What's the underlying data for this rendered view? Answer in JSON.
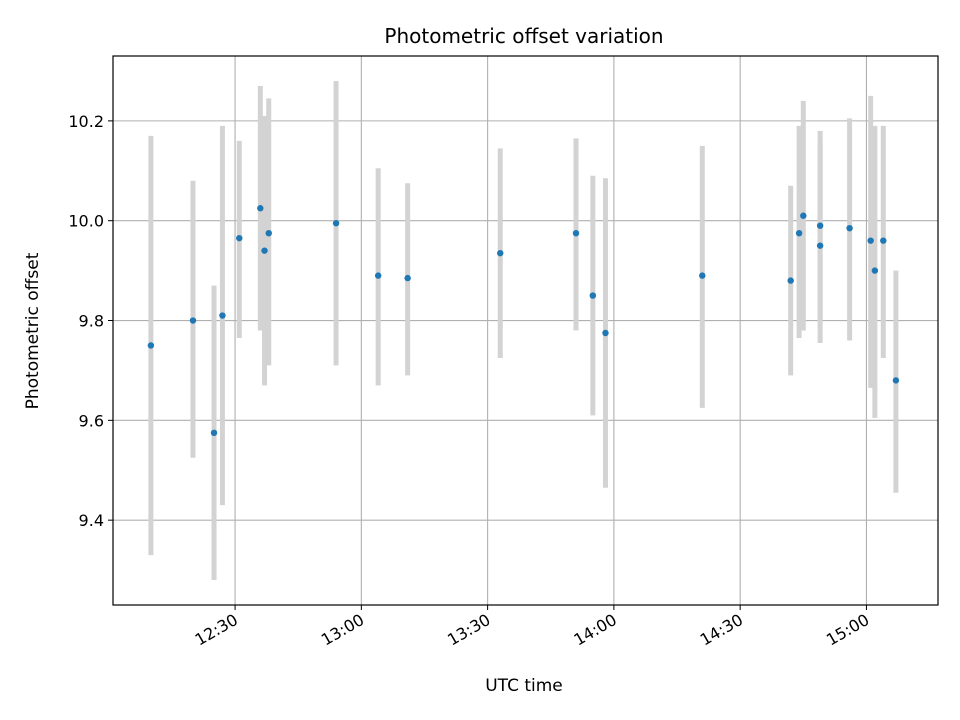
{
  "chart_data": {
    "type": "scatter",
    "title": "Photometric offset variation",
    "xlabel": "UTC time",
    "ylabel": "Photometric offset",
    "x_unit": "UTC time (HH:MM)",
    "xlim": [
      "12:01",
      "15:17"
    ],
    "ylim": [
      9.23,
      10.33
    ],
    "xticks": [
      "12:30",
      "13:00",
      "13:30",
      "14:00",
      "14:30",
      "15:00"
    ],
    "yticks": [
      9.4,
      9.6,
      9.8,
      10.0,
      10.2
    ],
    "ytick_labels": [
      "9.4",
      "9.6",
      "9.8",
      "10.0",
      "10.2"
    ],
    "grid": true,
    "colors": {
      "marker": "#1f77b4",
      "errorbar": "#d3d3d3",
      "grid": "#b0b0b0",
      "axes": "#000000"
    },
    "points": [
      {
        "x": "12:10",
        "y": 9.75,
        "ylow": 9.33,
        "yhigh": 10.17
      },
      {
        "x": "12:20",
        "y": 9.8,
        "ylow": 9.525,
        "yhigh": 10.08
      },
      {
        "x": "12:25",
        "y": 9.575,
        "ylow": 9.28,
        "yhigh": 9.87
      },
      {
        "x": "12:27",
        "y": 9.81,
        "ylow": 9.43,
        "yhigh": 10.19
      },
      {
        "x": "12:31",
        "y": 9.965,
        "ylow": 9.765,
        "yhigh": 10.16
      },
      {
        "x": "12:36",
        "y": 10.025,
        "ylow": 9.78,
        "yhigh": 10.27
      },
      {
        "x": "12:37",
        "y": 9.94,
        "ylow": 9.67,
        "yhigh": 10.21
      },
      {
        "x": "12:38",
        "y": 9.975,
        "ylow": 9.71,
        "yhigh": 10.245
      },
      {
        "x": "12:54",
        "y": 9.995,
        "ylow": 9.71,
        "yhigh": 10.28
      },
      {
        "x": "13:04",
        "y": 9.89,
        "ylow": 9.67,
        "yhigh": 10.105
      },
      {
        "x": "13:11",
        "y": 9.885,
        "ylow": 9.69,
        "yhigh": 10.075
      },
      {
        "x": "13:33",
        "y": 9.935,
        "ylow": 9.725,
        "yhigh": 10.145
      },
      {
        "x": "13:51",
        "y": 9.975,
        "ylow": 9.78,
        "yhigh": 10.165
      },
      {
        "x": "13:55",
        "y": 9.85,
        "ylow": 9.61,
        "yhigh": 10.09
      },
      {
        "x": "13:58",
        "y": 9.775,
        "ylow": 9.465,
        "yhigh": 10.085
      },
      {
        "x": "14:21",
        "y": 9.89,
        "ylow": 9.625,
        "yhigh": 10.15
      },
      {
        "x": "14:42",
        "y": 9.88,
        "ylow": 9.69,
        "yhigh": 10.07
      },
      {
        "x": "14:44",
        "y": 9.975,
        "ylow": 9.765,
        "yhigh": 10.19
      },
      {
        "x": "14:45",
        "y": 10.01,
        "ylow": 9.78,
        "yhigh": 10.24
      },
      {
        "x": "14:49",
        "y": 9.95,
        "ylow": 9.755,
        "yhigh": 10.155
      },
      {
        "x": "14:49",
        "y": 9.99,
        "ylow": 9.8,
        "yhigh": 10.18
      },
      {
        "x": "14:56",
        "y": 9.985,
        "ylow": 9.76,
        "yhigh": 10.205
      },
      {
        "x": "15:01",
        "y": 9.96,
        "ylow": 9.665,
        "yhigh": 10.25
      },
      {
        "x": "15:02",
        "y": 9.9,
        "ylow": 9.605,
        "yhigh": 10.19
      },
      {
        "x": "15:04",
        "y": 9.96,
        "ylow": 9.725,
        "yhigh": 10.19
      },
      {
        "x": "15:07",
        "y": 9.68,
        "ylow": 9.455,
        "yhigh": 9.9
      }
    ]
  }
}
